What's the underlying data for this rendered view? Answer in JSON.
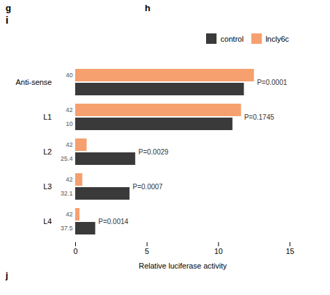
{
  "chart_data": {
    "type": "bar",
    "orientation": "horizontal",
    "title": "i",
    "xlabel": "Relative luciferase activity",
    "categories": [
      "Anti-sense",
      "L1",
      "L2",
      "L3",
      "L4"
    ],
    "series": [
      {
        "name": "control",
        "color": "#3a3a3a",
        "values": [
          11.8,
          11.0,
          4.2,
          3.8,
          1.4
        ],
        "position_labels": [
          null,
          "10",
          "25.4",
          "32.1",
          "37.5"
        ]
      },
      {
        "name": "lncly6c",
        "color": "#f5a06e",
        "values": [
          12.5,
          11.6,
          0.8,
          0.5,
          0.3
        ],
        "position_labels": [
          "40",
          "42",
          "42",
          "42",
          "42"
        ]
      }
    ],
    "p_values": [
      "P=0.0001",
      "P=0.1745",
      "P=0.0029",
      "P=0.0007",
      "P=0.0014"
    ],
    "annotations": [
      "g",
      "h",
      "j"
    ],
    "xlim": [
      0,
      15
    ],
    "xticks": [
      0,
      5,
      10,
      15
    ],
    "grid": false,
    "legend": "upper right"
  }
}
